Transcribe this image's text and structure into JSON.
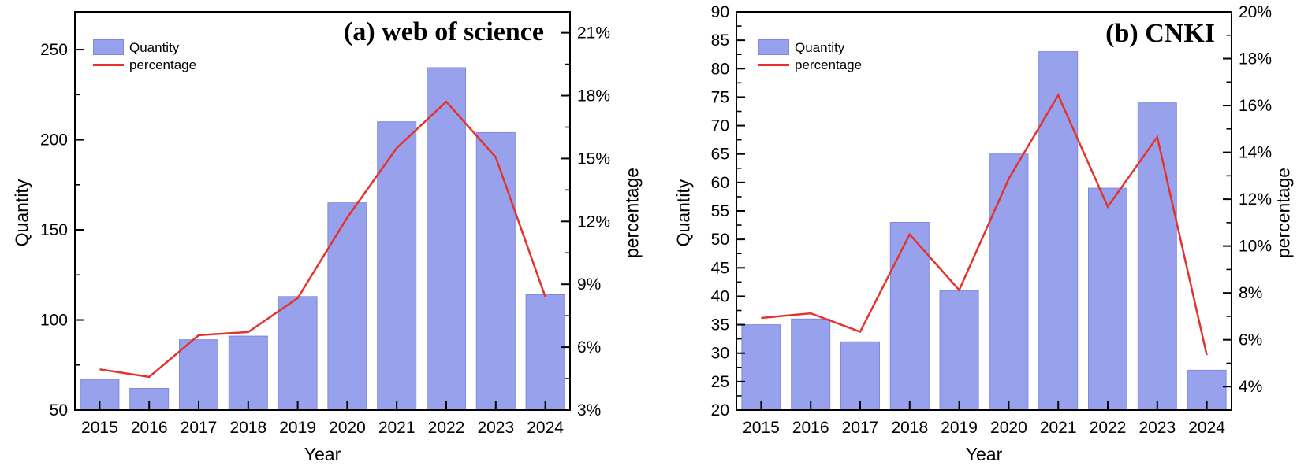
{
  "figure": {
    "background": "#ffffff",
    "bar_color": "#98a2ec",
    "bar_border_color": "#7d89e3",
    "line_color": "#e4332c",
    "axis_color": "#000000"
  },
  "chart_data": [
    {
      "id": "a",
      "type": "bar",
      "combo": "bar+line",
      "title": "(a) web of science",
      "xlabel": "Year",
      "ylabel_left": "Quantity",
      "ylabel_right": "percentage",
      "grid": false,
      "legend_position": "top-left-inside",
      "categories": [
        "2015",
        "2016",
        "2017",
        "2018",
        "2019",
        "2020",
        "2021",
        "2022",
        "2023",
        "2024"
      ],
      "series": [
        {
          "name": "Quantity",
          "type": "bar",
          "axis": "left",
          "values": [
            67,
            62,
            89,
            91,
            113,
            165,
            210,
            240,
            204,
            114
          ]
        },
        {
          "name": "percentage",
          "type": "line",
          "axis": "right",
          "unit": "%",
          "values": [
            4.94,
            4.58,
            6.57,
            6.72,
            8.34,
            12.18,
            15.5,
            17.71,
            15.06,
            8.41
          ]
        }
      ],
      "left_axis": {
        "min": 50,
        "max": 271,
        "ticks": [
          50,
          100,
          150,
          200,
          250
        ],
        "tick_labels": [
          "50",
          "100",
          "150",
          "200",
          "250"
        ],
        "minor_step": 25
      },
      "right_axis": {
        "min": 3,
        "max": 22,
        "ticks": [
          3,
          6,
          9,
          12,
          15,
          18,
          21
        ],
        "tick_labels": [
          "3%",
          "6%",
          "9%",
          "12%",
          "15%",
          "18%",
          "21%"
        ],
        "minor_step": 1.5
      }
    },
    {
      "id": "b",
      "type": "bar",
      "combo": "bar+line",
      "title": "(b) CNKI",
      "xlabel": "Year",
      "ylabel_left": "Quantity",
      "ylabel_right": "percentage",
      "grid": false,
      "legend_position": "top-left-inside",
      "categories": [
        "2015",
        "2016",
        "2017",
        "2018",
        "2019",
        "2020",
        "2021",
        "2022",
        "2023",
        "2024"
      ],
      "series": [
        {
          "name": "Quantity",
          "type": "bar",
          "axis": "left",
          "values": [
            35,
            36,
            32,
            53,
            41,
            65,
            83,
            59,
            74,
            27
          ]
        },
        {
          "name": "percentage",
          "type": "line",
          "axis": "right",
          "unit": "%",
          "values": [
            6.93,
            7.13,
            6.34,
            10.5,
            8.12,
            12.87,
            16.44,
            11.68,
            14.65,
            5.35
          ]
        }
      ],
      "left_axis": {
        "min": 20,
        "max": 90,
        "ticks": [
          20,
          25,
          30,
          35,
          40,
          45,
          50,
          55,
          60,
          65,
          70,
          75,
          80,
          85,
          90
        ],
        "tick_labels": [
          "20",
          "25",
          "30",
          "35",
          "40",
          "45",
          "50",
          "55",
          "60",
          "65",
          "70",
          "75",
          "80",
          "85",
          "90"
        ],
        "minor_step": 2.5
      },
      "right_axis": {
        "min": 3,
        "max": 20,
        "ticks": [
          4,
          6,
          8,
          10,
          12,
          14,
          16,
          18,
          20
        ],
        "tick_labels": [
          "4%",
          "6%",
          "8%",
          "10%",
          "12%",
          "14%",
          "16%",
          "18%",
          "20%"
        ],
        "minor_step": 1
      }
    }
  ]
}
